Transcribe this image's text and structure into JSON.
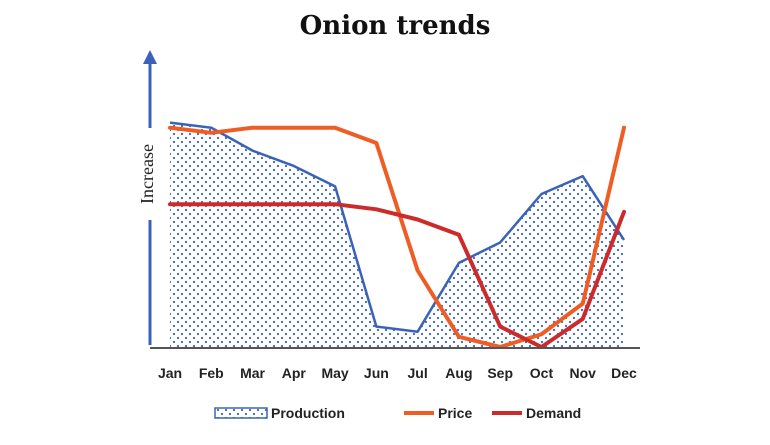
{
  "chart_data": {
    "type": "line",
    "title": "Onion trends",
    "ylabel": "Increase",
    "xlabel": "",
    "categories": [
      "Jan",
      "Feb",
      "Mar",
      "Apr",
      "May",
      "Jun",
      "Jul",
      "Aug",
      "Sep",
      "Oct",
      "Nov",
      "Dec"
    ],
    "ylim": [
      0,
      100
    ],
    "grid": false,
    "legend_position": "bottom",
    "series": [
      {
        "name": "Production",
        "style": "area",
        "color": "#3a63b8",
        "fill_pattern": "dots",
        "fill_color": "#3a63b8",
        "values": [
          88,
          86,
          77,
          71,
          63,
          8,
          6,
          33,
          41,
          60,
          67,
          42
        ]
      },
      {
        "name": "Price",
        "style": "line",
        "color": "#ee5d24",
        "values": [
          86,
          84,
          86,
          86,
          86,
          80,
          30,
          4,
          0,
          5,
          17,
          86
        ]
      },
      {
        "name": "Demand",
        "style": "line",
        "color": "#cc2b2b",
        "values": [
          56,
          56,
          56,
          56,
          56,
          54,
          50,
          44,
          8,
          0,
          11,
          53
        ]
      }
    ]
  }
}
